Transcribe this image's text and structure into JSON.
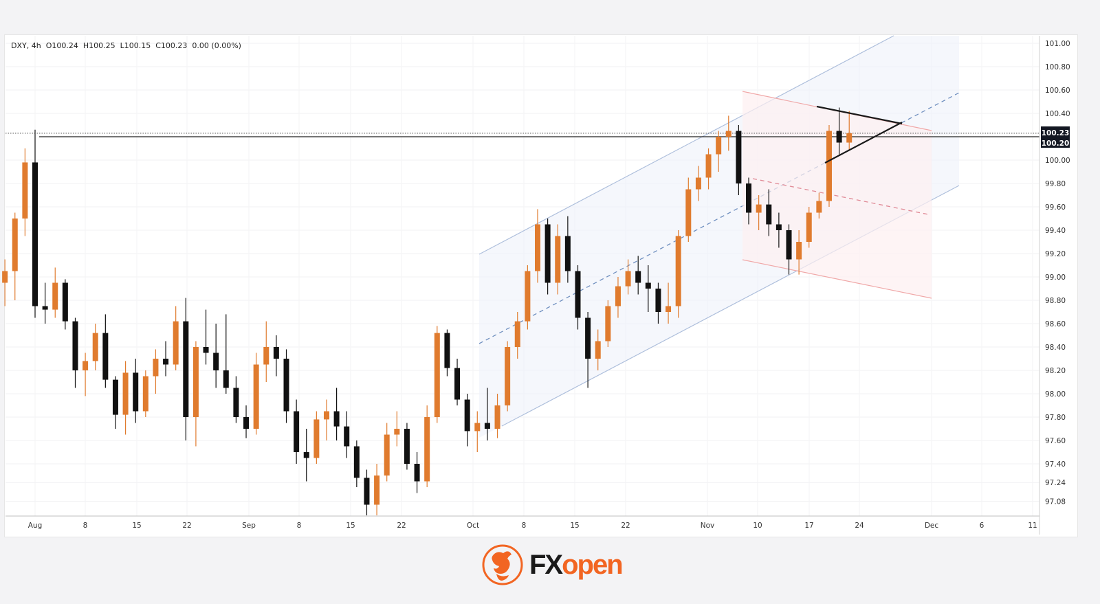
{
  "legend": {
    "symbol": "DXY, 4h",
    "open": "O100.24",
    "high": "H100.25",
    "low": "L100.15",
    "close": "C100.23",
    "change": "0.00 (0.00%)"
  },
  "price_labels": {
    "last": "100.23",
    "level": "100.20"
  },
  "colors": {
    "up": "#e07b2e",
    "down": "#111111",
    "channel_blue": "#aebfdc",
    "channel_red": "#f0a8a8",
    "triangle": "#1a1a1a",
    "last_badge": "#131722"
  },
  "logo": {
    "brand": "FXopen",
    "fx": "FX",
    "open": "open",
    "accent": "#f26522"
  },
  "chart_data": {
    "type": "candlestick",
    "title": "DXY, 4h",
    "xlabel": "",
    "ylabel": "",
    "ylim": [
      96.95,
      101.07
    ],
    "grid": true,
    "y_ticks": [
      "101.00",
      "100.80",
      "100.60",
      "100.40",
      "100.00",
      "99.80",
      "99.60",
      "99.40",
      "99.20",
      "99.00",
      "98.80",
      "98.60",
      "98.40",
      "98.20",
      "98.00",
      "97.80",
      "97.60",
      "97.40",
      "97.24",
      "97.08"
    ],
    "x_ticks": [
      "Aug",
      "8",
      "15",
      "22",
      "Sep",
      "8",
      "15",
      "22",
      "Oct",
      "8",
      "15",
      "22",
      "Nov",
      "10",
      "17",
      "24",
      "Dec",
      "6",
      "11"
    ],
    "horizontal_level": 100.2,
    "last_price": 100.23,
    "ohlc_columns": [
      "date",
      "open",
      "high",
      "low",
      "close"
    ],
    "ohlc_approx": [
      [
        "Jul 29",
        98.95,
        99.15,
        98.75,
        99.05
      ],
      [
        "Jul 30",
        99.05,
        99.55,
        98.8,
        99.5
      ],
      [
        "Jul 31",
        99.5,
        100.1,
        99.35,
        99.98
      ],
      [
        "Aug 1",
        99.98,
        100.26,
        98.65,
        98.75
      ],
      [
        "Aug 4",
        98.75,
        98.95,
        98.6,
        98.72
      ],
      [
        "Aug 5",
        98.72,
        99.08,
        98.65,
        98.95
      ],
      [
        "Aug 6",
        98.95,
        98.98,
        98.55,
        98.62
      ],
      [
        "Aug 7",
        98.62,
        98.65,
        98.05,
        98.2
      ],
      [
        "Aug 8",
        98.2,
        98.35,
        97.98,
        98.28
      ],
      [
        "Aug 11",
        98.28,
        98.6,
        98.2,
        98.52
      ],
      [
        "Aug 12",
        98.52,
        98.68,
        98.05,
        98.12
      ],
      [
        "Aug 13",
        98.12,
        98.15,
        97.7,
        97.82
      ],
      [
        "Aug 14",
        97.82,
        98.28,
        97.65,
        98.18
      ],
      [
        "Aug 15",
        98.18,
        98.3,
        97.75,
        97.85
      ],
      [
        "Aug 18",
        97.85,
        98.2,
        97.8,
        98.15
      ],
      [
        "Aug 19",
        98.15,
        98.38,
        98.0,
        98.3
      ],
      [
        "Aug 20",
        98.3,
        98.45,
        98.15,
        98.25
      ],
      [
        "Aug 21",
        98.25,
        98.75,
        98.2,
        98.62
      ],
      [
        "Aug 22",
        98.62,
        98.82,
        97.6,
        97.8
      ],
      [
        "Aug 25",
        97.8,
        98.45,
        97.55,
        98.4
      ],
      [
        "Aug 26",
        98.4,
        98.72,
        98.25,
        98.35
      ],
      [
        "Aug 27",
        98.35,
        98.6,
        98.05,
        98.2
      ],
      [
        "Aug 28",
        98.2,
        98.68,
        98.0,
        98.05
      ],
      [
        "Aug 29",
        98.05,
        98.15,
        97.75,
        97.8
      ],
      [
        "Sep 1",
        97.8,
        97.9,
        97.62,
        97.7
      ],
      [
        "Sep 2",
        97.7,
        98.35,
        97.65,
        98.25
      ],
      [
        "Sep 3",
        98.25,
        98.62,
        98.1,
        98.4
      ],
      [
        "Sep 4",
        98.4,
        98.5,
        98.15,
        98.3
      ],
      [
        "Sep 5",
        98.3,
        98.38,
        97.75,
        97.85
      ],
      [
        "Sep 8",
        97.85,
        97.95,
        97.4,
        97.5
      ],
      [
        "Sep 9",
        97.5,
        97.7,
        97.25,
        97.45
      ],
      [
        "Sep 10",
        97.45,
        97.85,
        97.4,
        97.78
      ],
      [
        "Sep 11",
        97.78,
        97.95,
        97.6,
        97.85
      ],
      [
        "Sep 12",
        97.85,
        98.05,
        97.6,
        97.72
      ],
      [
        "Sep 15",
        97.72,
        97.85,
        97.45,
        97.55
      ],
      [
        "Sep 16",
        97.55,
        97.6,
        97.2,
        97.28
      ],
      [
        "Sep 17",
        97.28,
        97.35,
        96.9,
        97.05
      ],
      [
        "Sep 18",
        97.05,
        97.4,
        96.95,
        97.3
      ],
      [
        "Sep 19",
        97.3,
        97.75,
        97.25,
        97.65
      ],
      [
        "Sep 22",
        97.65,
        97.85,
        97.55,
        97.7
      ],
      [
        "Sep 23",
        97.7,
        97.75,
        97.35,
        97.4
      ],
      [
        "Sep 24",
        97.4,
        97.5,
        97.15,
        97.25
      ],
      [
        "Sep 25",
        97.25,
        97.9,
        97.2,
        97.8
      ],
      [
        "Sep 26",
        97.8,
        98.58,
        97.75,
        98.52
      ],
      [
        "Sep 29",
        98.52,
        98.55,
        98.15,
        98.22
      ],
      [
        "Sep 30",
        98.22,
        98.3,
        97.9,
        97.95
      ],
      [
        "Oct 1",
        97.95,
        98.0,
        97.55,
        97.68
      ],
      [
        "Oct 2",
        97.68,
        97.85,
        97.5,
        97.75
      ],
      [
        "Oct 3",
        97.75,
        98.05,
        97.6,
        97.7
      ],
      [
        "Oct 6",
        97.7,
        98.0,
        97.62,
        97.9
      ],
      [
        "Oct 7",
        97.9,
        98.45,
        97.85,
        98.4
      ],
      [
        "Oct 8",
        98.4,
        98.7,
        98.3,
        98.62
      ],
      [
        "Oct 9",
        98.62,
        99.1,
        98.55,
        99.05
      ],
      [
        "Oct 10",
        99.05,
        99.58,
        98.95,
        99.45
      ],
      [
        "Oct 13",
        99.45,
        99.5,
        98.85,
        98.95
      ],
      [
        "Oct 14",
        98.95,
        99.45,
        98.85,
        99.35
      ],
      [
        "Oct 15",
        99.35,
        99.52,
        98.95,
        99.05
      ],
      [
        "Oct 16",
        99.05,
        99.1,
        98.55,
        98.65
      ],
      [
        "Oct 17",
        98.65,
        98.7,
        98.05,
        98.3
      ],
      [
        "Oct 20",
        98.3,
        98.55,
        98.2,
        98.45
      ],
      [
        "Oct 21",
        98.45,
        98.8,
        98.4,
        98.75
      ],
      [
        "Oct 22",
        98.75,
        99.0,
        98.65,
        98.92
      ],
      [
        "Oct 23",
        98.92,
        99.15,
        98.85,
        99.05
      ],
      [
        "Oct 24",
        99.05,
        99.18,
        98.85,
        98.95
      ],
      [
        "Oct 27",
        98.95,
        99.1,
        98.7,
        98.9
      ],
      [
        "Oct 28",
        98.9,
        98.95,
        98.6,
        98.7
      ],
      [
        "Oct 29",
        98.7,
        98.95,
        98.6,
        98.75
      ],
      [
        "Oct 30",
        98.75,
        99.4,
        98.65,
        99.35
      ],
      [
        "Oct 31",
        99.35,
        99.85,
        99.3,
        99.75
      ],
      [
        "Nov 3",
        99.75,
        99.95,
        99.65,
        99.85
      ],
      [
        "Nov 4",
        99.85,
        100.1,
        99.75,
        100.05
      ],
      [
        "Nov 5",
        100.05,
        100.25,
        99.9,
        100.2
      ],
      [
        "Nov 6",
        100.2,
        100.38,
        100.08,
        100.25
      ],
      [
        "Nov 7",
        100.25,
        100.3,
        99.7,
        99.8
      ],
      [
        "Nov 10",
        99.8,
        99.85,
        99.45,
        99.55
      ],
      [
        "Nov 11",
        99.55,
        99.7,
        99.4,
        99.62
      ],
      [
        "Nov 12",
        99.62,
        99.75,
        99.35,
        99.45
      ],
      [
        "Nov 13",
        99.45,
        99.55,
        99.25,
        99.4
      ],
      [
        "Nov 14",
        99.4,
        99.45,
        99.02,
        99.15
      ],
      [
        "Nov 17",
        99.15,
        99.4,
        99.02,
        99.3
      ],
      [
        "Nov 18",
        99.3,
        99.6,
        99.25,
        99.55
      ],
      [
        "Nov 19",
        99.55,
        99.72,
        99.5,
        99.65
      ],
      [
        "Nov 20",
        99.65,
        100.3,
        99.6,
        100.25
      ],
      [
        "Nov 21",
        100.25,
        100.45,
        100.05,
        100.15
      ],
      [
        "Nov 24",
        100.15,
        100.42,
        100.08,
        100.23
      ]
    ]
  }
}
